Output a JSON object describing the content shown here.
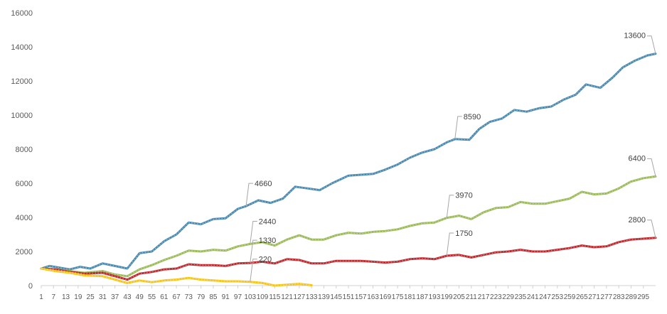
{
  "chart_data": {
    "type": "line",
    "title": "",
    "xlabel": "",
    "ylabel": "",
    "ylim": [
      0,
      16000
    ],
    "yticks": [
      0,
      2000,
      4000,
      6000,
      8000,
      10000,
      12000,
      14000,
      16000
    ],
    "xlim": [
      1,
      301
    ],
    "xticks": [
      1,
      7,
      13,
      19,
      25,
      31,
      37,
      43,
      49,
      55,
      61,
      67,
      73,
      79,
      85,
      91,
      97,
      103,
      109,
      115,
      121,
      127,
      133,
      139,
      145,
      151,
      157,
      163,
      169,
      175,
      181,
      187,
      193,
      199,
      205,
      211,
      217,
      223,
      229,
      235,
      241,
      247,
      253,
      259,
      265,
      271,
      277,
      283,
      289,
      295
    ],
    "grid": false,
    "legend": "none",
    "series": [
      {
        "color": "#4a8ab0",
        "points": [
          [
            1,
            1000
          ],
          [
            5,
            1150
          ],
          [
            15,
            950
          ],
          [
            20,
            1100
          ],
          [
            25,
            1000
          ],
          [
            31,
            1300
          ],
          [
            37,
            1150
          ],
          [
            43,
            1000
          ],
          [
            49,
            1900
          ],
          [
            55,
            2000
          ],
          [
            61,
            2600
          ],
          [
            67,
            3000
          ],
          [
            73,
            3700
          ],
          [
            79,
            3600
          ],
          [
            85,
            3900
          ],
          [
            91,
            3950
          ],
          [
            97,
            4500
          ],
          [
            101,
            4660
          ],
          [
            107,
            5000
          ],
          [
            113,
            4850
          ],
          [
            119,
            5100
          ],
          [
            125,
            5800
          ],
          [
            131,
            5700
          ],
          [
            137,
            5600
          ],
          [
            143,
            6000
          ],
          [
            151,
            6450
          ],
          [
            157,
            6500
          ],
          [
            163,
            6550
          ],
          [
            169,
            6800
          ],
          [
            175,
            7100
          ],
          [
            181,
            7500
          ],
          [
            187,
            7800
          ],
          [
            193,
            8000
          ],
          [
            199,
            8400
          ],
          [
            203,
            8590
          ],
          [
            210,
            8550
          ],
          [
            215,
            9200
          ],
          [
            220,
            9600
          ],
          [
            226,
            9800
          ],
          [
            232,
            10300
          ],
          [
            238,
            10200
          ],
          [
            244,
            10400
          ],
          [
            250,
            10500
          ],
          [
            256,
            10900
          ],
          [
            262,
            11200
          ],
          [
            267,
            11800
          ],
          [
            274,
            11600
          ],
          [
            280,
            12200
          ],
          [
            285,
            12800
          ],
          [
            291,
            13200
          ],
          [
            297,
            13500
          ],
          [
            301,
            13600
          ]
        ],
        "labels": [
          {
            "x": 101,
            "text": "4660"
          },
          {
            "x": 203,
            "text": "8590"
          },
          {
            "x": 301,
            "text": "13600"
          }
        ]
      },
      {
        "color": "#9bbb59",
        "points": [
          [
            1,
            1000
          ],
          [
            8,
            950
          ],
          [
            15,
            850
          ],
          [
            22,
            750
          ],
          [
            31,
            850
          ],
          [
            37,
            650
          ],
          [
            43,
            550
          ],
          [
            49,
            950
          ],
          [
            55,
            1200
          ],
          [
            61,
            1500
          ],
          [
            67,
            1750
          ],
          [
            73,
            2050
          ],
          [
            79,
            2000
          ],
          [
            85,
            2100
          ],
          [
            91,
            2050
          ],
          [
            97,
            2300
          ],
          [
            103,
            2440
          ],
          [
            109,
            2550
          ],
          [
            115,
            2350
          ],
          [
            121,
            2700
          ],
          [
            127,
            2950
          ],
          [
            133,
            2700
          ],
          [
            139,
            2700
          ],
          [
            145,
            2950
          ],
          [
            151,
            3100
          ],
          [
            157,
            3050
          ],
          [
            163,
            3150
          ],
          [
            169,
            3200
          ],
          [
            175,
            3300
          ],
          [
            181,
            3500
          ],
          [
            187,
            3650
          ],
          [
            193,
            3700
          ],
          [
            199,
            3970
          ],
          [
            205,
            4100
          ],
          [
            211,
            3900
          ],
          [
            217,
            4300
          ],
          [
            223,
            4550
          ],
          [
            229,
            4600
          ],
          [
            235,
            4900
          ],
          [
            241,
            4800
          ],
          [
            247,
            4800
          ],
          [
            253,
            4950
          ],
          [
            259,
            5100
          ],
          [
            265,
            5500
          ],
          [
            271,
            5350
          ],
          [
            277,
            5400
          ],
          [
            283,
            5700
          ],
          [
            289,
            6100
          ],
          [
            295,
            6300
          ],
          [
            301,
            6400
          ]
        ],
        "labels": [
          {
            "x": 103,
            "text": "2440"
          },
          {
            "x": 199,
            "text": "3970"
          },
          {
            "x": 301,
            "text": "6400"
          }
        ]
      },
      {
        "color": "#c0282d",
        "points": [
          [
            1,
            1000
          ],
          [
            8,
            950
          ],
          [
            15,
            800
          ],
          [
            22,
            700
          ],
          [
            31,
            750
          ],
          [
            37,
            550
          ],
          [
            43,
            350
          ],
          [
            49,
            700
          ],
          [
            55,
            800
          ],
          [
            61,
            950
          ],
          [
            67,
            1000
          ],
          [
            73,
            1250
          ],
          [
            79,
            1200
          ],
          [
            85,
            1200
          ],
          [
            91,
            1150
          ],
          [
            97,
            1300
          ],
          [
            103,
            1330
          ],
          [
            109,
            1400
          ],
          [
            115,
            1300
          ],
          [
            121,
            1550
          ],
          [
            127,
            1500
          ],
          [
            133,
            1300
          ],
          [
            139,
            1300
          ],
          [
            145,
            1450
          ],
          [
            151,
            1450
          ],
          [
            157,
            1450
          ],
          [
            163,
            1400
          ],
          [
            169,
            1350
          ],
          [
            175,
            1400
          ],
          [
            181,
            1550
          ],
          [
            187,
            1600
          ],
          [
            193,
            1550
          ],
          [
            199,
            1750
          ],
          [
            205,
            1800
          ],
          [
            211,
            1650
          ],
          [
            217,
            1800
          ],
          [
            223,
            1950
          ],
          [
            229,
            2000
          ],
          [
            235,
            2100
          ],
          [
            241,
            2000
          ],
          [
            247,
            2000
          ],
          [
            253,
            2100
          ],
          [
            259,
            2200
          ],
          [
            265,
            2350
          ],
          [
            271,
            2250
          ],
          [
            277,
            2300
          ],
          [
            283,
            2550
          ],
          [
            289,
            2700
          ],
          [
            295,
            2750
          ],
          [
            301,
            2800
          ]
        ],
        "labels": [
          {
            "x": 103,
            "text": "1330"
          },
          {
            "x": 199,
            "text": "1750"
          },
          {
            "x": 301,
            "text": "2800"
          }
        ]
      },
      {
        "color": "#f5c518",
        "points": [
          [
            1,
            1000
          ],
          [
            8,
            850
          ],
          [
            15,
            750
          ],
          [
            22,
            600
          ],
          [
            31,
            550
          ],
          [
            37,
            350
          ],
          [
            43,
            150
          ],
          [
            49,
            300
          ],
          [
            55,
            200
          ],
          [
            61,
            300
          ],
          [
            67,
            350
          ],
          [
            73,
            450
          ],
          [
            79,
            350
          ],
          [
            85,
            300
          ],
          [
            91,
            250
          ],
          [
            97,
            250
          ],
          [
            103,
            220
          ],
          [
            109,
            150
          ],
          [
            115,
            0
          ],
          [
            121,
            50
          ],
          [
            127,
            100
          ],
          [
            133,
            20
          ]
        ],
        "labels": [
          {
            "x": 103,
            "text": "220"
          }
        ]
      }
    ]
  }
}
